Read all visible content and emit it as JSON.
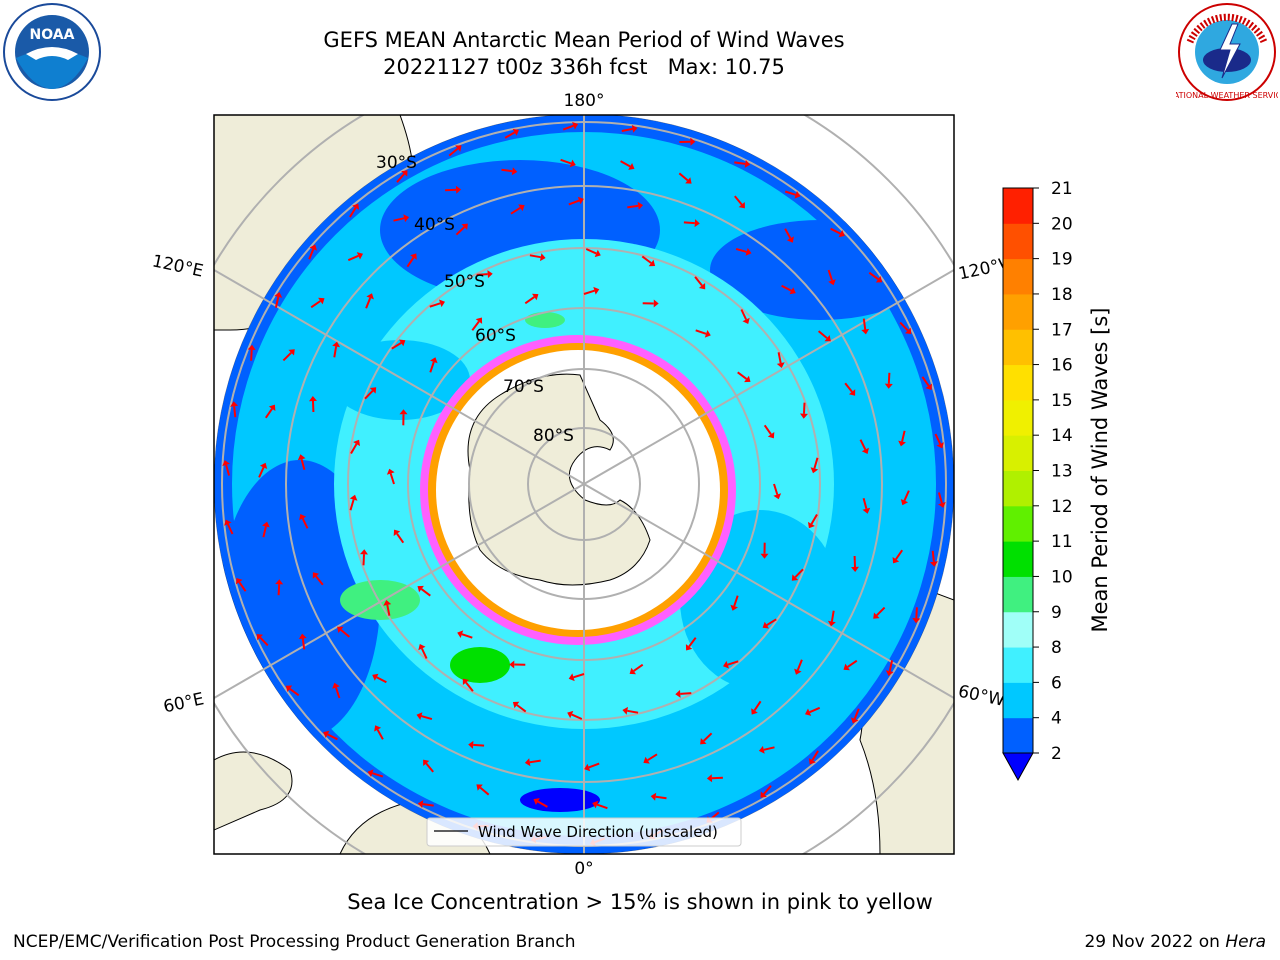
{
  "header": {
    "title_line1": "GEFS MEAN Antarctic Mean Period of Wind Waves",
    "title_line2": "20221127 t00z 336h fcst   Max: 10.75"
  },
  "logos": {
    "left": "noaa-logo",
    "right": "national-weather-service-logo",
    "left_text": "NOAA",
    "right_text": "NATIONAL WEATHER SERVICE"
  },
  "map": {
    "projection": "south-polar-stereographic",
    "longitude_labels": {
      "top": "180°",
      "bottom": "0°",
      "left_upper": "120°E",
      "left_lower": "60°E",
      "right_upper": "120°W",
      "right_lower": "60°W"
    },
    "latitude_labels": [
      "30°S",
      "40°S",
      "50°S",
      "60°S",
      "70°S",
      "80°S"
    ],
    "legend_label": "Wind Wave Direction (unscaled)",
    "colors": {
      "land": "#efedd9",
      "ocean_outside": "#ffffff",
      "sea_ice_white": "#ffffff",
      "arrow": "#ff0000",
      "grid": "#b0b0b0"
    }
  },
  "colorbar": {
    "label": "Mean Period of Wind Waves [s]",
    "ticks": [
      "2",
      "4",
      "6",
      "8",
      "9",
      "10",
      "11",
      "12",
      "13",
      "14",
      "15",
      "16",
      "17",
      "18",
      "19",
      "20",
      "21"
    ],
    "colors": [
      "#0060ff",
      "#00c8ff",
      "#40f0ff",
      "#a0fff8",
      "#40f080",
      "#00e000",
      "#60f000",
      "#b0f000",
      "#d8f000",
      "#f0f000",
      "#ffe000",
      "#ffc000",
      "#ffa000",
      "#ff8000",
      "#ff5000",
      "#ff2000"
    ],
    "extend_color": "#0000ff"
  },
  "caption": "Sea Ice Concentration > 15% is shown in pink to yellow",
  "footer": {
    "left": "NCEP/EMC/Verification Post Processing Product Generation Branch",
    "right_prefix": "29 Nov 2022 on ",
    "right_italic": "Hera"
  }
}
